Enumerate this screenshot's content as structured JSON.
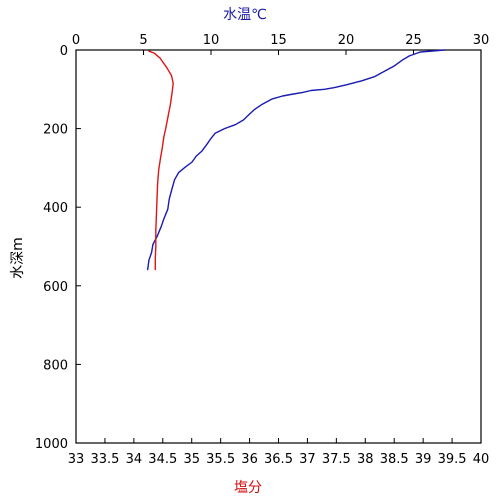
{
  "chart_data": {
    "type": "line",
    "top_axis": {
      "label": "水温℃",
      "label_color": "#1a1aa6",
      "range": [
        0,
        30
      ],
      "ticks": [
        0,
        5,
        10,
        15,
        20,
        25,
        30
      ]
    },
    "bottom_axis": {
      "label": "塩分",
      "label_color": "#d01010",
      "range": [
        33,
        40
      ],
      "ticks": [
        "33",
        "33.5",
        "34",
        "34.5",
        "35",
        "35.5",
        "36",
        "36.5",
        "37",
        "37.5",
        "38",
        "38.5",
        "39",
        "39.5",
        "40"
      ]
    },
    "y_axis": {
      "label": "水深m",
      "range": [
        0,
        1000
      ],
      "inverted": true,
      "ticks": [
        0,
        200,
        400,
        600,
        800,
        1000
      ]
    },
    "series": [
      {
        "axis": "top",
        "color": "#1a1ab4",
        "points": [
          [
            27.3,
            0
          ],
          [
            25.5,
            5
          ],
          [
            24.7,
            15
          ],
          [
            24.2,
            25
          ],
          [
            23.6,
            40
          ],
          [
            22.8,
            55
          ],
          [
            22.1,
            68
          ],
          [
            21.2,
            78
          ],
          [
            20.1,
            88
          ],
          [
            19.1,
            96
          ],
          [
            18.4,
            100
          ],
          [
            17.4,
            103
          ],
          [
            16.8,
            108
          ],
          [
            16.1,
            112
          ],
          [
            15.3,
            117
          ],
          [
            14.5,
            125
          ],
          [
            13.8,
            138
          ],
          [
            13.2,
            152
          ],
          [
            12.8,
            165
          ],
          [
            12.4,
            178
          ],
          [
            11.8,
            190
          ],
          [
            11.0,
            200
          ],
          [
            10.3,
            212
          ],
          [
            10.0,
            225
          ],
          [
            9.7,
            240
          ],
          [
            9.3,
            258
          ],
          [
            8.9,
            270
          ],
          [
            8.6,
            285
          ],
          [
            8.1,
            298
          ],
          [
            7.6,
            312
          ],
          [
            7.3,
            330
          ],
          [
            7.1,
            355
          ],
          [
            6.9,
            380
          ],
          [
            6.8,
            405
          ],
          [
            6.5,
            430
          ],
          [
            6.3,
            450
          ],
          [
            6.0,
            475
          ],
          [
            5.7,
            495
          ],
          [
            5.6,
            515
          ],
          [
            5.4,
            535
          ],
          [
            5.3,
            560
          ]
        ]
      },
      {
        "axis": "bottom",
        "color": "#e01515",
        "points": [
          [
            34.25,
            2
          ],
          [
            34.35,
            8
          ],
          [
            34.45,
            20
          ],
          [
            34.57,
            45
          ],
          [
            34.65,
            65
          ],
          [
            34.68,
            85
          ],
          [
            34.66,
            110
          ],
          [
            34.63,
            140
          ],
          [
            34.59,
            170
          ],
          [
            34.55,
            200
          ],
          [
            34.52,
            220
          ],
          [
            34.49,
            250
          ],
          [
            34.46,
            275
          ],
          [
            34.43,
            305
          ],
          [
            34.41,
            340
          ],
          [
            34.4,
            380
          ],
          [
            34.39,
            420
          ],
          [
            34.38,
            460
          ],
          [
            34.38,
            500
          ],
          [
            34.37,
            530
          ],
          [
            34.37,
            560
          ]
        ]
      }
    ]
  }
}
